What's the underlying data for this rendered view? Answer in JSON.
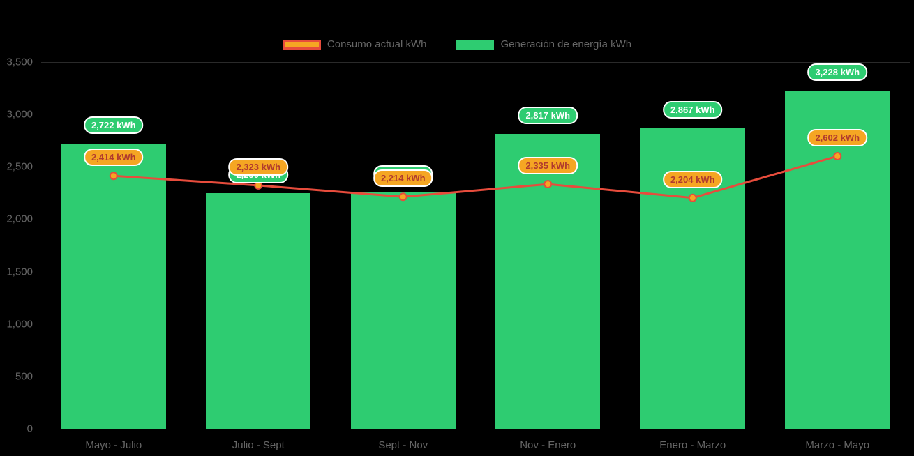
{
  "chart_data": {
    "type": "bar",
    "title": "",
    "categories": [
      "Mayo - Julio",
      "Julio - Sept",
      "Sept - Nov",
      "Nov - Enero",
      "Enero - Marzo",
      "Marzo - Mayo"
    ],
    "series": [
      {
        "name": "Consumo actual kWh",
        "type": "line",
        "values": [
          2414,
          2323,
          2214,
          2335,
          2204,
          2602
        ],
        "labels": [
          "2,414 kWh",
          "2,323 kWh",
          "2,214 kWh",
          "2,335 kWh",
          "2,204 kWh",
          "2,602 kWh"
        ]
      },
      {
        "name": "Generación de energía kWh",
        "type": "bar",
        "values": [
          2722,
          2250,
          2253,
          2817,
          2867,
          3228
        ],
        "labels": [
          "2,722 kWh",
          "2,250 kWh",
          "2,253 kWh",
          "2,817 kWh",
          "2,867 kWh",
          "3,228 kWh"
        ]
      }
    ],
    "ylim": [
      0,
      3500
    ],
    "yticks": {
      "values": [
        0,
        500,
        1000,
        1500,
        2000,
        2500,
        3000,
        3500
      ],
      "labels": [
        "0",
        "500",
        "1,000",
        "1,500",
        "2,000",
        "2,500",
        "3,000",
        "3,500"
      ]
    },
    "legend_position": "top-center",
    "grid": "single faint line at 3,500",
    "colors": {
      "bar": "#2ecc71",
      "line": "#e74c3c",
      "marker": "#f5a623",
      "badge_consumo_bg": "#f5a623",
      "badge_consumo_text": "#b03a2e",
      "badge_generacion_bg": "#2ecc71",
      "badge_generacion_text": "#ffffff",
      "axis_text": "#666666",
      "background": "#000000"
    }
  }
}
